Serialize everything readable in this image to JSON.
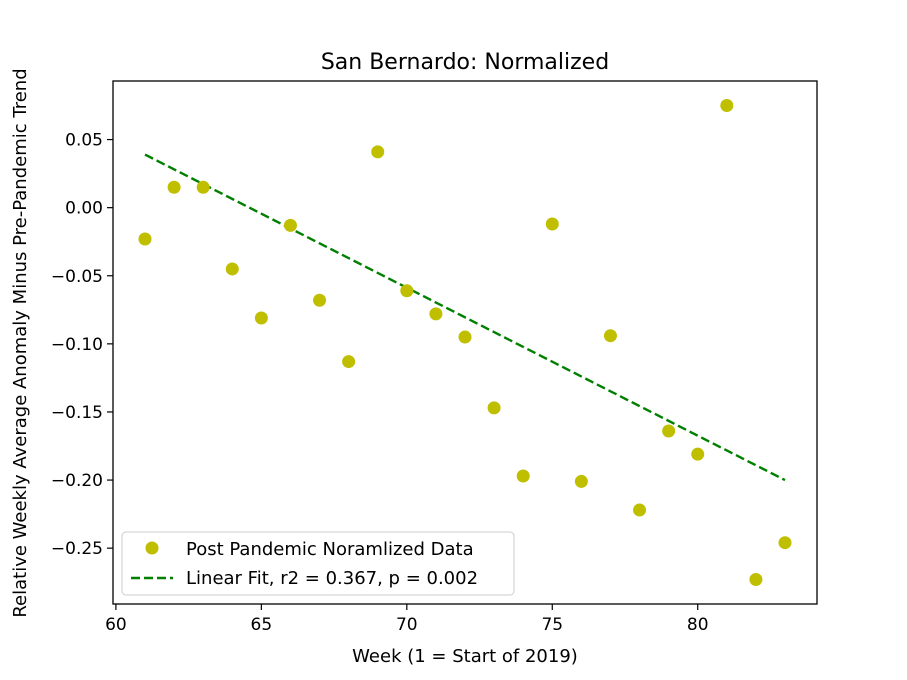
{
  "chart_data": {
    "type": "scatter",
    "title": "San Bernardo: Normalized",
    "xlabel": "Week (1 = Start of 2019)",
    "ylabel": "Relative Weekly Average Anomaly Minus Pre-Pandemic Trend",
    "xlim": [
      59.9,
      84.1
    ],
    "ylim": [
      -0.291,
      0.093
    ],
    "xticks": [
      60,
      65,
      70,
      75,
      80
    ],
    "xtick_labels": [
      "60",
      "65",
      "70",
      "75",
      "80"
    ],
    "yticks": [
      0.05,
      0.0,
      -0.05,
      -0.1,
      -0.15,
      -0.2,
      -0.25
    ],
    "ytick_labels": [
      "0.05",
      "0.00",
      "−0.05",
      "−0.10",
      "−0.15",
      "−0.20",
      "−0.25"
    ],
    "grid": false,
    "legend_position": "lower-left",
    "series": [
      {
        "name": "Post Pandemic Noramlized Data",
        "kind": "points",
        "color": "#bfbf00",
        "x": [
          61,
          62,
          63,
          64,
          65,
          66,
          67,
          68,
          69,
          70,
          71,
          72,
          73,
          74,
          75,
          76,
          77,
          78,
          79,
          80,
          81,
          82,
          83
        ],
        "y": [
          -0.023,
          0.015,
          0.015,
          -0.045,
          -0.081,
          -0.013,
          -0.068,
          -0.113,
          0.041,
          -0.061,
          -0.078,
          -0.095,
          -0.147,
          -0.197,
          -0.012,
          -0.201,
          -0.094,
          -0.222,
          -0.164,
          -0.181,
          0.075,
          -0.273,
          -0.246
        ]
      },
      {
        "name": "Linear Fit, r2 = 0.367, p = 0.002",
        "kind": "dashed-line",
        "color": "#008000",
        "x": [
          61,
          83
        ],
        "y": [
          0.039,
          -0.2
        ]
      }
    ]
  }
}
